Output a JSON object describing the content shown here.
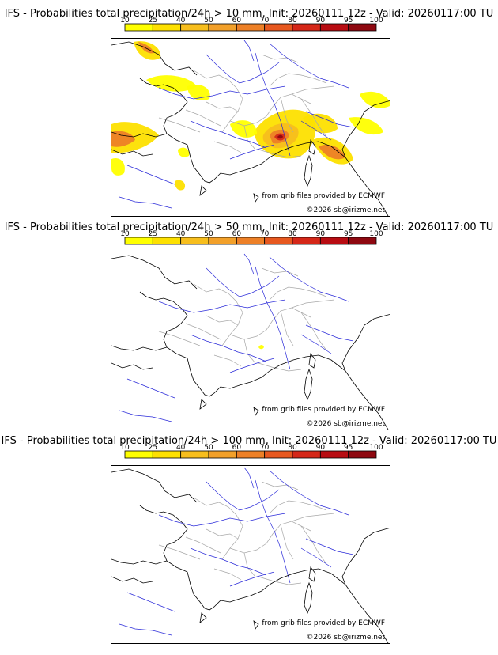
{
  "colorbar": {
    "ticks": [
      "10",
      "25",
      "40",
      "50",
      "60",
      "70",
      "80",
      "90",
      "95",
      "100"
    ],
    "colors": [
      "#ffff00",
      "#fde000",
      "#f7be1d",
      "#f2a02a",
      "#ed8027",
      "#e7581f",
      "#d52718",
      "#b80c12",
      "#8e0810",
      "#5a0508"
    ]
  },
  "colors": {
    "river": "#2b2bd9",
    "border": "#a8a8a8",
    "coast": "#000000"
  },
  "credits": {
    "source": "from grib files provided by ECMWF",
    "copyright": "©2026 sb@irizme.net"
  },
  "panels": [
    {
      "title": "IFS - Probabilities total precipitation/24h > 10 mm, Init: 20260111 12z - Valid: 20260117:00 TU",
      "threshold_mm": 10
    },
    {
      "title": "IFS - Probabilities total precipitation/24h > 50 mm, Init: 20260111 12z - Valid: 20260117:00 TU",
      "threshold_mm": 50
    },
    {
      "title": "IFS - Probabilities total precipitation/24h > 100 mm, Init: 20260111 12z - Valid: 20260117:00 TU",
      "threshold_mm": 100
    }
  ]
}
